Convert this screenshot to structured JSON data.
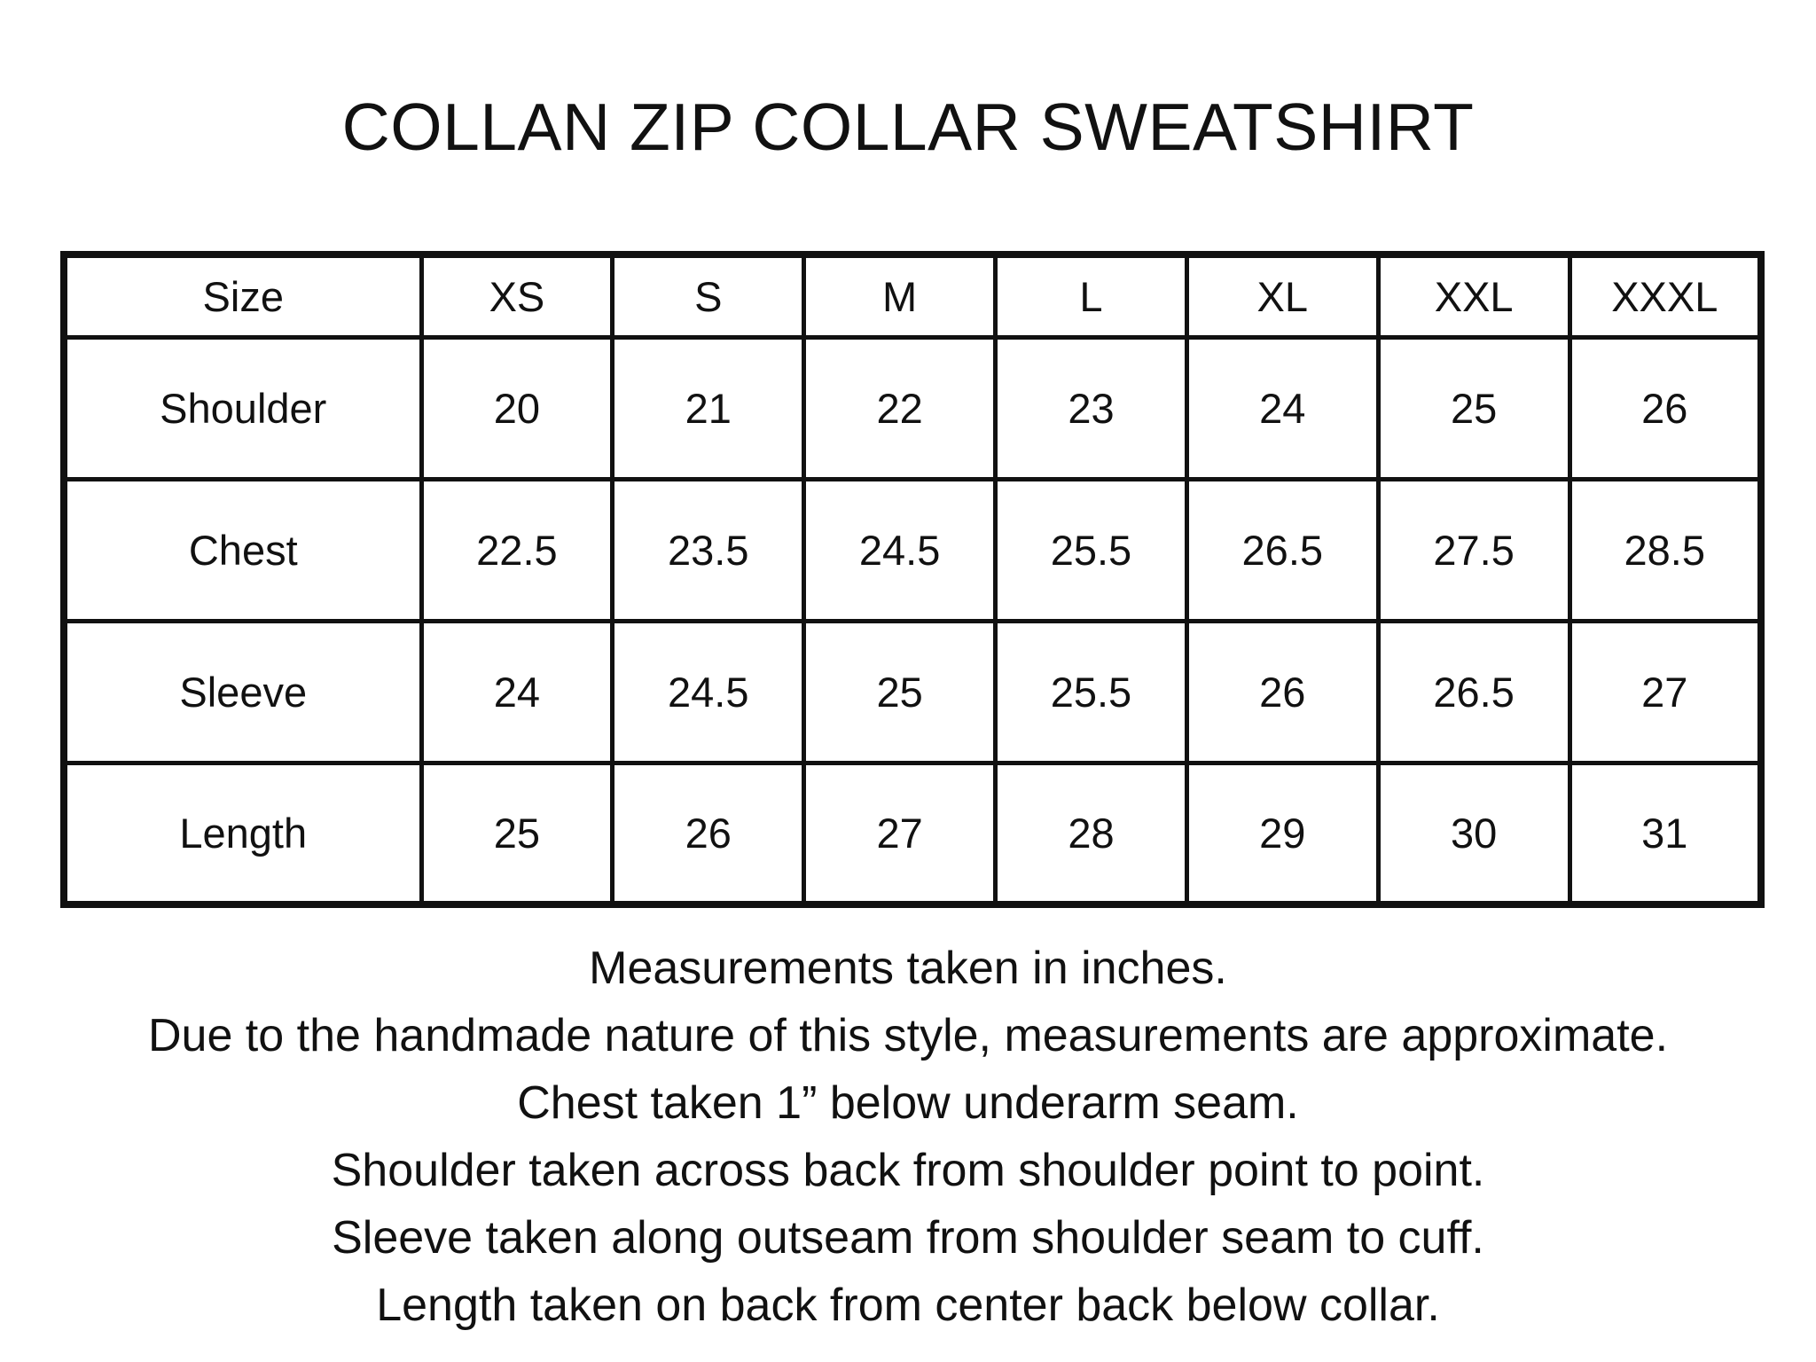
{
  "title": "COLLAN ZIP COLLAR SWEATSHIRT",
  "size_chart": {
    "headers": [
      "Size",
      "XS",
      "S",
      "M",
      "L",
      "XL",
      "XXL",
      "XXXL"
    ],
    "rows": [
      {
        "label": "Shoulder",
        "values": [
          "20",
          "21",
          "22",
          "23",
          "24",
          "25",
          "26"
        ]
      },
      {
        "label": "Chest",
        "values": [
          "22.5",
          "23.5",
          "24.5",
          "25.5",
          "26.5",
          "27.5",
          "28.5"
        ]
      },
      {
        "label": "Sleeve",
        "values": [
          "24",
          "24.5",
          "25",
          "25.5",
          "26",
          "26.5",
          "27"
        ]
      },
      {
        "label": "Length",
        "values": [
          "25",
          "26",
          "27",
          "28",
          "29",
          "30",
          "31"
        ]
      }
    ],
    "units": "inches"
  },
  "notes": {
    "lines": [
      "Measurements taken in inches.",
      "Due to the handmade nature of this style, measurements are approximate.",
      "Chest taken 1” below underarm seam.",
      "Shoulder taken across back from shoulder point to point.",
      "Sleeve taken along outseam from shoulder seam to cuff.",
      "Length taken on back from center back below collar."
    ]
  },
  "colors": {
    "background": "#ffffff",
    "text": "#111111",
    "border": "#111111"
  }
}
